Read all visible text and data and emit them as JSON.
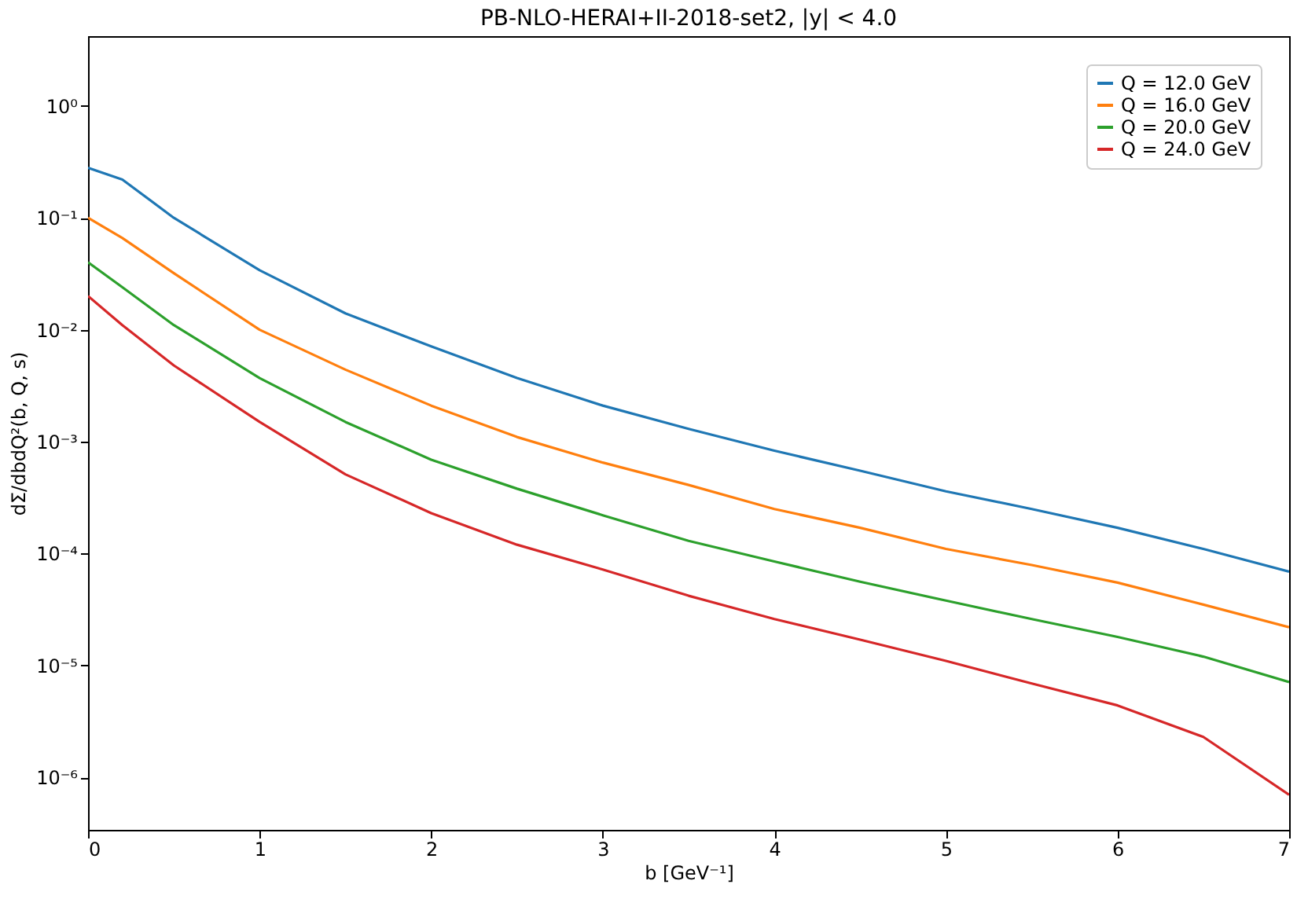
{
  "chart_data": {
    "type": "line",
    "title": "PB-NLO-HERAI+II-2018-set2,  |y| < 4.0",
    "xlabel": "b [GeV⁻¹]",
    "ylabel": "dΣ/dbdQ²(b, Q, s)",
    "x": [
      0,
      0.2,
      0.5,
      1,
      1.5,
      2,
      2.5,
      3,
      3.5,
      4,
      4.5,
      5,
      5.5,
      6,
      6.5,
      7
    ],
    "series": [
      {
        "name": "Q = 12.0 GeV",
        "color": "#1f77b4",
        "values": [
          0.28,
          0.22,
          0.1,
          0.034,
          0.014,
          0.0071,
          0.0037,
          0.0021,
          0.0013,
          0.00083,
          0.00055,
          0.00036,
          0.00025,
          0.00017,
          0.00011,
          6.9e-05
        ]
      },
      {
        "name": "Q = 16.0 GeV",
        "color": "#ff7f0e",
        "values": [
          0.1,
          0.066,
          0.032,
          0.01,
          0.0044,
          0.0021,
          0.0011,
          0.00065,
          0.00041,
          0.00025,
          0.00017,
          0.00011,
          7.9e-05,
          5.5e-05,
          3.5e-05,
          2.2e-05
        ]
      },
      {
        "name": "Q = 20.0 GeV",
        "color": "#2ca02c",
        "values": [
          0.04,
          0.024,
          0.011,
          0.0037,
          0.0015,
          0.00069,
          0.00038,
          0.00022,
          0.00013,
          8.5e-05,
          5.6e-05,
          3.8e-05,
          2.6e-05,
          1.8e-05,
          1.2e-05,
          7.1e-06
        ]
      },
      {
        "name": "Q = 24.0 GeV",
        "color": "#d62728",
        "values": [
          0.02,
          0.011,
          0.0048,
          0.0015,
          0.00051,
          0.00023,
          0.00012,
          7.2e-05,
          4.2e-05,
          2.6e-05,
          1.7e-05,
          1.1e-05,
          6.9e-06,
          4.4e-06,
          2.3e-06,
          7e-07
        ]
      }
    ],
    "xlim": [
      0,
      7
    ],
    "xticks": [
      0,
      1,
      2,
      3,
      4,
      5,
      6,
      7
    ],
    "ylim": [
      3.4e-07,
      4.2
    ],
    "log": true,
    "yticks": [
      {
        "value": 1e-06,
        "label": "10⁻⁶"
      },
      {
        "value": 1e-05,
        "label": "10⁻⁵"
      },
      {
        "value": 0.0001,
        "label": "10⁻⁴"
      },
      {
        "value": 0.001,
        "label": "10⁻³"
      },
      {
        "value": 0.01,
        "label": "10⁻²"
      },
      {
        "value": 0.1,
        "label": "10⁻¹"
      },
      {
        "value": 1,
        "label": "10⁰"
      }
    ],
    "grid": false,
    "legend": "top right",
    "line_style": "solid",
    "marker": "none"
  }
}
